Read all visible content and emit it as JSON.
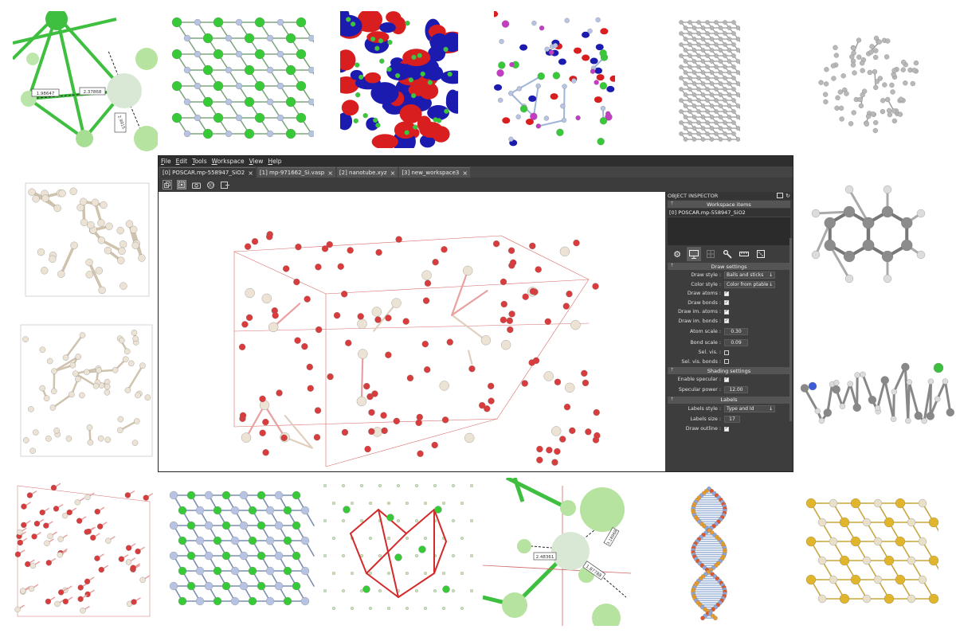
{
  "menu": [
    {
      "u": "F",
      "rest": "ile"
    },
    {
      "u": "E",
      "rest": "dit"
    },
    {
      "u": "T",
      "rest": "ools"
    },
    {
      "u": "W",
      "rest": "orkspace"
    },
    {
      "u": "V",
      "rest": "iew"
    },
    {
      "u": "H",
      "rest": "elp"
    }
  ],
  "tabs": [
    {
      "label": "[0] POSCAR.mp-558947_SiO2",
      "close": "×"
    },
    {
      "label": "[1] mp-971662_Si.vasp",
      "close": "×"
    },
    {
      "label": "[2] nanotube.xyz",
      "close": "×"
    },
    {
      "label": "[3] new_workspace3",
      "close": "×"
    }
  ],
  "toolbar": {
    "icons": [
      "copy-icon",
      "select-icon",
      "camera-icon",
      "rotate-icon",
      "export-icon"
    ]
  },
  "inspector": {
    "title": "OBJECT INSPECTOR",
    "workspace_items_header": "Workspace items",
    "workspace_items": [
      "[0] POSCAR.mp-558947_SiO2"
    ],
    "tool_icons": [
      "gear-icon",
      "monitor-icon",
      "grid-icon",
      "wrench-icon",
      "ruler-icon",
      "dice-icon"
    ],
    "draw_settings_header": "Draw settings",
    "draw_style_label": "Draw style :",
    "draw_style_value": "Balls and sticks",
    "color_style_label": "Color style :",
    "color_style_value": "Color from ptable",
    "draw_atoms_label": "Draw atoms :",
    "draw_bonds_label": "Draw bonds :",
    "draw_im_atoms_label": "Draw im. atoms :",
    "draw_im_bonds_label": "Draw im. bonds :",
    "atom_scale_label": "Atom scale :",
    "atom_scale_value": "0.30",
    "bond_scale_label": "Bond scale :",
    "bond_scale_value": "0.09",
    "sel_vis_label": "Sel. vis. :",
    "sel_vis_bonds_label": "Sel. vis. bonds :",
    "shading_header": "Shading settings",
    "enable_specular_label": "Enable specular :",
    "specular_power_label": "Specular power :",
    "specular_power_value": "12.00",
    "labels_header": "Labels",
    "labels_style_label": "Labels style :",
    "labels_style_value": "Type and Id",
    "labels_size_label": "Labels size :",
    "labels_size_value": "17",
    "draw_outline_label": "Draw outline :"
  },
  "tile_labels": {
    "t1_a": "1.98647",
    "t1_b": "2.37868",
    "t1_c": "2.9915",
    "t16_a": "2.48361",
    "t16_b": "1.87788",
    "t16_c": "3.18968"
  },
  "colors": {
    "silicon": "#ece3d4",
    "oxygen": "#d83c3c",
    "carbon": "#a9a9a9",
    "green_atom": "#38c938",
    "blue_atom": "#b7c3e2",
    "gold_atom": "#e0b52b"
  }
}
